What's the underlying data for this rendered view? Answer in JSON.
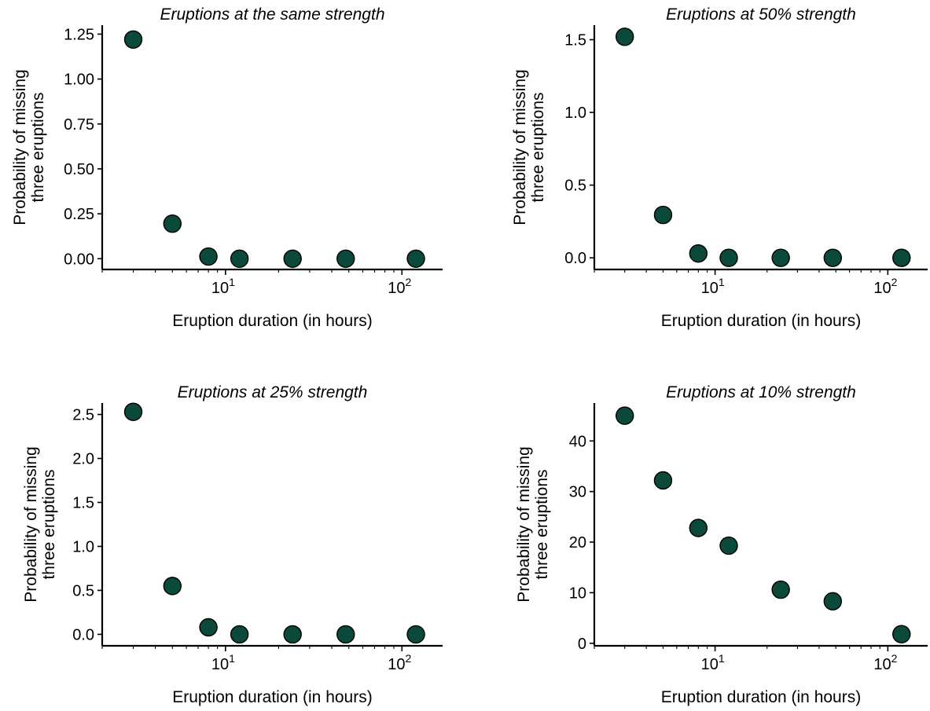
{
  "figure": {
    "marker_color": "#0b4a3b",
    "edge_color": "#000000"
  },
  "chart_data": [
    {
      "type": "scatter",
      "title": "Eruptions at the same strength",
      "xlabel": "Eruption duration (in hours)",
      "ylabel": [
        "Probability of missing",
        "three eruptions"
      ],
      "xscale": "log",
      "xlim": [
        2.0,
        170
      ],
      "ylim": [
        -0.06,
        1.3
      ],
      "xticks": [
        {
          "value": 10,
          "base": "10",
          "exp": "1"
        },
        {
          "value": 100,
          "base": "10",
          "exp": "2"
        }
      ],
      "yticks": [
        {
          "value": 0.0,
          "label": "0.00"
        },
        {
          "value": 0.25,
          "label": "0.25"
        },
        {
          "value": 0.5,
          "label": "0.50"
        },
        {
          "value": 0.75,
          "label": "0.75"
        },
        {
          "value": 1.0,
          "label": "1.00"
        },
        {
          "value": 1.25,
          "label": "1.25"
        }
      ],
      "x": [
        3,
        5,
        8,
        12,
        24,
        48,
        120
      ],
      "y": [
        1.22,
        0.195,
        0.012,
        0.0,
        0.0,
        0.0,
        0.0
      ],
      "grid": false
    },
    {
      "type": "scatter",
      "title": "Eruptions at 50% strength",
      "xlabel": "Eruption duration (in hours)",
      "ylabel": [
        "Probability of missing",
        "three eruptions"
      ],
      "xscale": "log",
      "xlim": [
        2.0,
        170
      ],
      "ylim": [
        -0.08,
        1.6
      ],
      "xticks": [
        {
          "value": 10,
          "base": "10",
          "exp": "1"
        },
        {
          "value": 100,
          "base": "10",
          "exp": "2"
        }
      ],
      "yticks": [
        {
          "value": 0.0,
          "label": "0.0"
        },
        {
          "value": 0.5,
          "label": "0.5"
        },
        {
          "value": 1.0,
          "label": "1.0"
        },
        {
          "value": 1.5,
          "label": "1.5"
        }
      ],
      "x": [
        3,
        5,
        8,
        12,
        24,
        48,
        120
      ],
      "y": [
        1.52,
        0.295,
        0.03,
        0.0,
        0.0,
        0.0,
        0.0
      ],
      "grid": false
    },
    {
      "type": "scatter",
      "title": "Eruptions at 25% strength",
      "xlabel": "Eruption duration (in hours)",
      "ylabel": [
        "Probability of missing",
        "three eruptions"
      ],
      "xscale": "log",
      "xlim": [
        2.0,
        170
      ],
      "ylim": [
        -0.13,
        2.63
      ],
      "xticks": [
        {
          "value": 10,
          "base": "10",
          "exp": "1"
        },
        {
          "value": 100,
          "base": "10",
          "exp": "2"
        }
      ],
      "yticks": [
        {
          "value": 0.0,
          "label": "0.0"
        },
        {
          "value": 0.5,
          "label": "0.5"
        },
        {
          "value": 1.0,
          "label": "1.0"
        },
        {
          "value": 1.5,
          "label": "1.5"
        },
        {
          "value": 2.0,
          "label": "2.0"
        },
        {
          "value": 2.5,
          "label": "2.5"
        }
      ],
      "x": [
        3,
        5,
        8,
        12,
        24,
        48,
        120
      ],
      "y": [
        2.53,
        0.55,
        0.08,
        0.0,
        0.0,
        0.0,
        0.0
      ],
      "grid": false
    },
    {
      "type": "scatter",
      "title": "Eruptions at 10% strength",
      "xlabel": "Eruption duration (in hours)",
      "ylabel": [
        "Probability of missing",
        "three eruptions"
      ],
      "xscale": "log",
      "xlim": [
        2.0,
        170
      ],
      "ylim": [
        -0.5,
        47.5
      ],
      "xticks": [
        {
          "value": 10,
          "base": "10",
          "exp": "1"
        },
        {
          "value": 100,
          "base": "10",
          "exp": "2"
        }
      ],
      "yticks": [
        {
          "value": 0,
          "label": "0"
        },
        {
          "value": 10,
          "label": "10"
        },
        {
          "value": 20,
          "label": "20"
        },
        {
          "value": 30,
          "label": "30"
        },
        {
          "value": 40,
          "label": "40"
        }
      ],
      "x": [
        3,
        5,
        8,
        12,
        24,
        48,
        120
      ],
      "y": [
        45.0,
        32.2,
        22.8,
        19.3,
        10.6,
        8.3,
        1.8
      ],
      "grid": false
    }
  ]
}
